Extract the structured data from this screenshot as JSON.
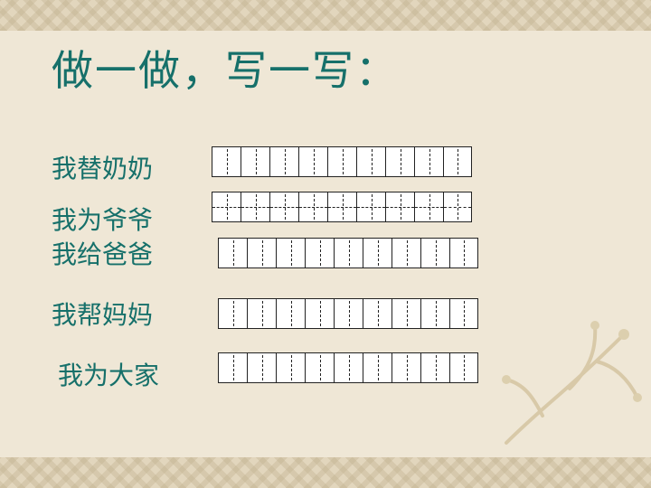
{
  "title": "做一做，写一写：",
  "rows": [
    {
      "label": "我替奶奶"
    },
    {
      "label": "我为爷爷"
    },
    {
      "label": "我给爸爸"
    },
    {
      "label": "我帮妈妈"
    },
    {
      "label": "我为大家"
    }
  ],
  "colors": {
    "text": "#16706a",
    "background": "#efe7d6"
  }
}
